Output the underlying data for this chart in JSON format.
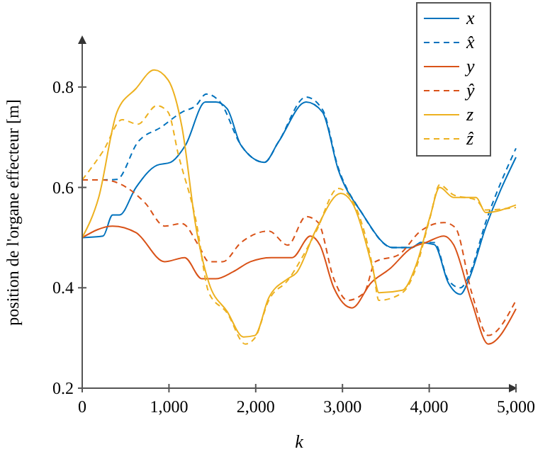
{
  "chart_data": {
    "type": "line",
    "xlabel": "k",
    "ylabel": "position de l'organe effecteur [m]",
    "xlim": [
      0,
      5000
    ],
    "ylim": [
      0.2,
      0.9
    ],
    "xticks": [
      0,
      {
        "value": 1000,
        "label": "1,000"
      },
      {
        "value": 2000,
        "label": "2,000"
      },
      {
        "value": 3000,
        "label": "3,000"
      },
      {
        "value": 4000,
        "label": "4,000"
      },
      {
        "value": 5000,
        "label": "5,000"
      }
    ],
    "yticks": [
      0.2,
      0.4,
      0.6,
      0.8
    ],
    "grid": false,
    "legend": "top right",
    "series": [
      {
        "name": "x",
        "color": "#0072bd",
        "line_style": "solid",
        "x": [
          0,
          240,
          350,
          430,
          620,
          860,
          1020,
          1190,
          1420,
          1540,
          1670,
          1830,
          2100,
          2260,
          2580,
          2770,
          2950,
          3220,
          3580,
          3800,
          3900,
          4060,
          4220,
          4360,
          4460,
          4650,
          5000
        ],
        "values": [
          0.5,
          0.503,
          0.545,
          0.545,
          0.6,
          0.644,
          0.65,
          0.684,
          0.77,
          0.77,
          0.757,
          0.684,
          0.65,
          0.69,
          0.77,
          0.75,
          0.636,
          0.55,
          0.48,
          0.48,
          0.49,
          0.486,
          0.41,
          0.387,
          0.418,
          0.52,
          0.66
        ]
      },
      {
        "name": "x̂",
        "color": "#0072bd",
        "line_style": "dashed",
        "x": [
          0,
          240,
          400,
          640,
          910,
          1150,
          1310,
          1430,
          1590,
          1830,
          2100,
          2260,
          2580,
          2770,
          2950,
          3220,
          3580,
          3800,
          3900,
          4060,
          4220,
          4360,
          4460,
          4650,
          5000
        ],
        "values": [
          0.615,
          0.615,
          0.616,
          0.69,
          0.72,
          0.75,
          0.763,
          0.786,
          0.77,
          0.684,
          0.65,
          0.69,
          0.78,
          0.755,
          0.64,
          0.55,
          0.48,
          0.48,
          0.49,
          0.49,
          0.415,
          0.4,
          0.425,
          0.53,
          0.678
        ]
      },
      {
        "name": "y",
        "color": "#d95319",
        "line_style": "solid",
        "x": [
          0,
          350,
          620,
          950,
          1180,
          1380,
          1540,
          1740,
          1940,
          2180,
          2420,
          2630,
          2740,
          2900,
          3110,
          3330,
          3540,
          3800,
          3960,
          4170,
          4280,
          4490,
          4680,
          5000
        ],
        "values": [
          0.5,
          0.523,
          0.51,
          0.452,
          0.46,
          0.418,
          0.418,
          0.432,
          0.452,
          0.46,
          0.46,
          0.503,
          0.485,
          0.4,
          0.36,
          0.41,
          0.437,
          0.48,
          0.49,
          0.503,
          0.486,
          0.372,
          0.288,
          0.358
        ]
      },
      {
        "name": "ŷ",
        "color": "#d95319",
        "line_style": "dashed",
        "x": [
          0,
          240,
          510,
          720,
          950,
          1150,
          1340,
          1460,
          1620,
          1830,
          2150,
          2370,
          2580,
          2720,
          2900,
          3060,
          3250,
          3380,
          3650,
          3900,
          4170,
          4300,
          4490,
          4680,
          5000
        ],
        "values": [
          0.615,
          0.615,
          0.6,
          0.57,
          0.523,
          0.528,
          0.485,
          0.452,
          0.452,
          0.49,
          0.513,
          0.485,
          0.542,
          0.53,
          0.418,
          0.375,
          0.39,
          0.452,
          0.466,
          0.513,
          0.53,
          0.52,
          0.39,
          0.305,
          0.375
        ]
      },
      {
        "name": "z",
        "color": "#edb120",
        "line_style": "solid",
        "x": [
          0,
          190,
          400,
          620,
          830,
          990,
          1150,
          1310,
          1460,
          1670,
          1860,
          1990,
          2150,
          2370,
          2470,
          2690,
          2980,
          3110,
          3350,
          3420,
          3690,
          3850,
          4010,
          4120,
          4280,
          4540,
          4650,
          5000
        ],
        "values": [
          0.5,
          0.58,
          0.75,
          0.797,
          0.834,
          0.814,
          0.72,
          0.522,
          0.41,
          0.353,
          0.302,
          0.305,
          0.38,
          0.418,
          0.43,
          0.514,
          0.588,
          0.57,
          0.437,
          0.39,
          0.395,
          0.446,
          0.542,
          0.6,
          0.58,
          0.58,
          0.55,
          0.565
        ]
      },
      {
        "name": "ẑ",
        "color": "#edb120",
        "line_style": "dashed",
        "x": [
          0,
          240,
          460,
          640,
          860,
          990,
          1110,
          1310,
          1460,
          1670,
          1880,
          1990,
          2150,
          2370,
          2690,
          2950,
          3110,
          3350,
          3420,
          3690,
          3850,
          4010,
          4120,
          4280,
          4540,
          4650,
          5000
        ],
        "values": [
          0.615,
          0.672,
          0.735,
          0.726,
          0.763,
          0.75,
          0.664,
          0.535,
          0.39,
          0.35,
          0.288,
          0.3,
          0.375,
          0.415,
          0.51,
          0.598,
          0.575,
          0.44,
          0.375,
          0.39,
          0.44,
          0.54,
          0.605,
          0.585,
          0.575,
          0.555,
          0.56
        ]
      }
    ]
  }
}
